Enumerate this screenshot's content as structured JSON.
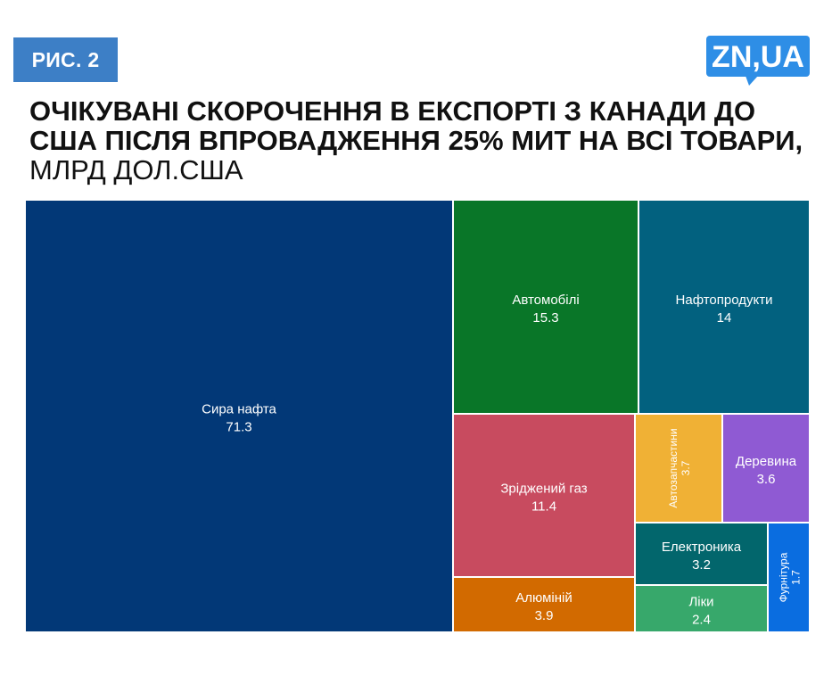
{
  "figure_label": "РИС. 2",
  "logo_text": "ZN,UA",
  "title": {
    "main": "ОЧІКУВАНІ СКОРОЧЕННЯ В ЕКСПОРТІ З КАНАДИ ДО США ПІСЛЯ ВПРОВАДЖЕННЯ 25% МИТ НА ВСІ ТОВАРИ,",
    "unit": "МЛРД ДОЛ.США"
  },
  "colors": {
    "badge": "#3d7fc6",
    "logo": "#2e8ee6",
    "text": "#111111"
  },
  "chart_data": {
    "type": "treemap",
    "title": "ОЧІКУВАНІ СКОРОЧЕННЯ В ЕКСПОРТІ З КАНАДИ ДО США ПІСЛЯ ВПРОВАДЖЕННЯ 25% МИТ НА ВСІ ТОВАРИ, МЛРД ДОЛ.США",
    "items": [
      {
        "name": "Сира нафта",
        "value": 71.3,
        "color": "#023877"
      },
      {
        "name": "Автомобілі",
        "value": 15.3,
        "color": "#097628"
      },
      {
        "name": "Нафтопродукти",
        "value": 14,
        "color": "#02617f"
      },
      {
        "name": "Зріджений газ",
        "value": 11.4,
        "color": "#c84b5f"
      },
      {
        "name": "Алюміній",
        "value": 3.9,
        "color": "#d26a00"
      },
      {
        "name": "Автозапчастини",
        "value": 3.7,
        "color": "#f0b135"
      },
      {
        "name": "Деревина",
        "value": 3.6,
        "color": "#8f5ad3"
      },
      {
        "name": "Електроника",
        "value": 3.2,
        "color": "#02666c"
      },
      {
        "name": "Ліки",
        "value": 2.4,
        "color": "#37a86b"
      },
      {
        "name": "Фурнітура",
        "value": 1.7,
        "color": "#0a6de0"
      }
    ]
  }
}
